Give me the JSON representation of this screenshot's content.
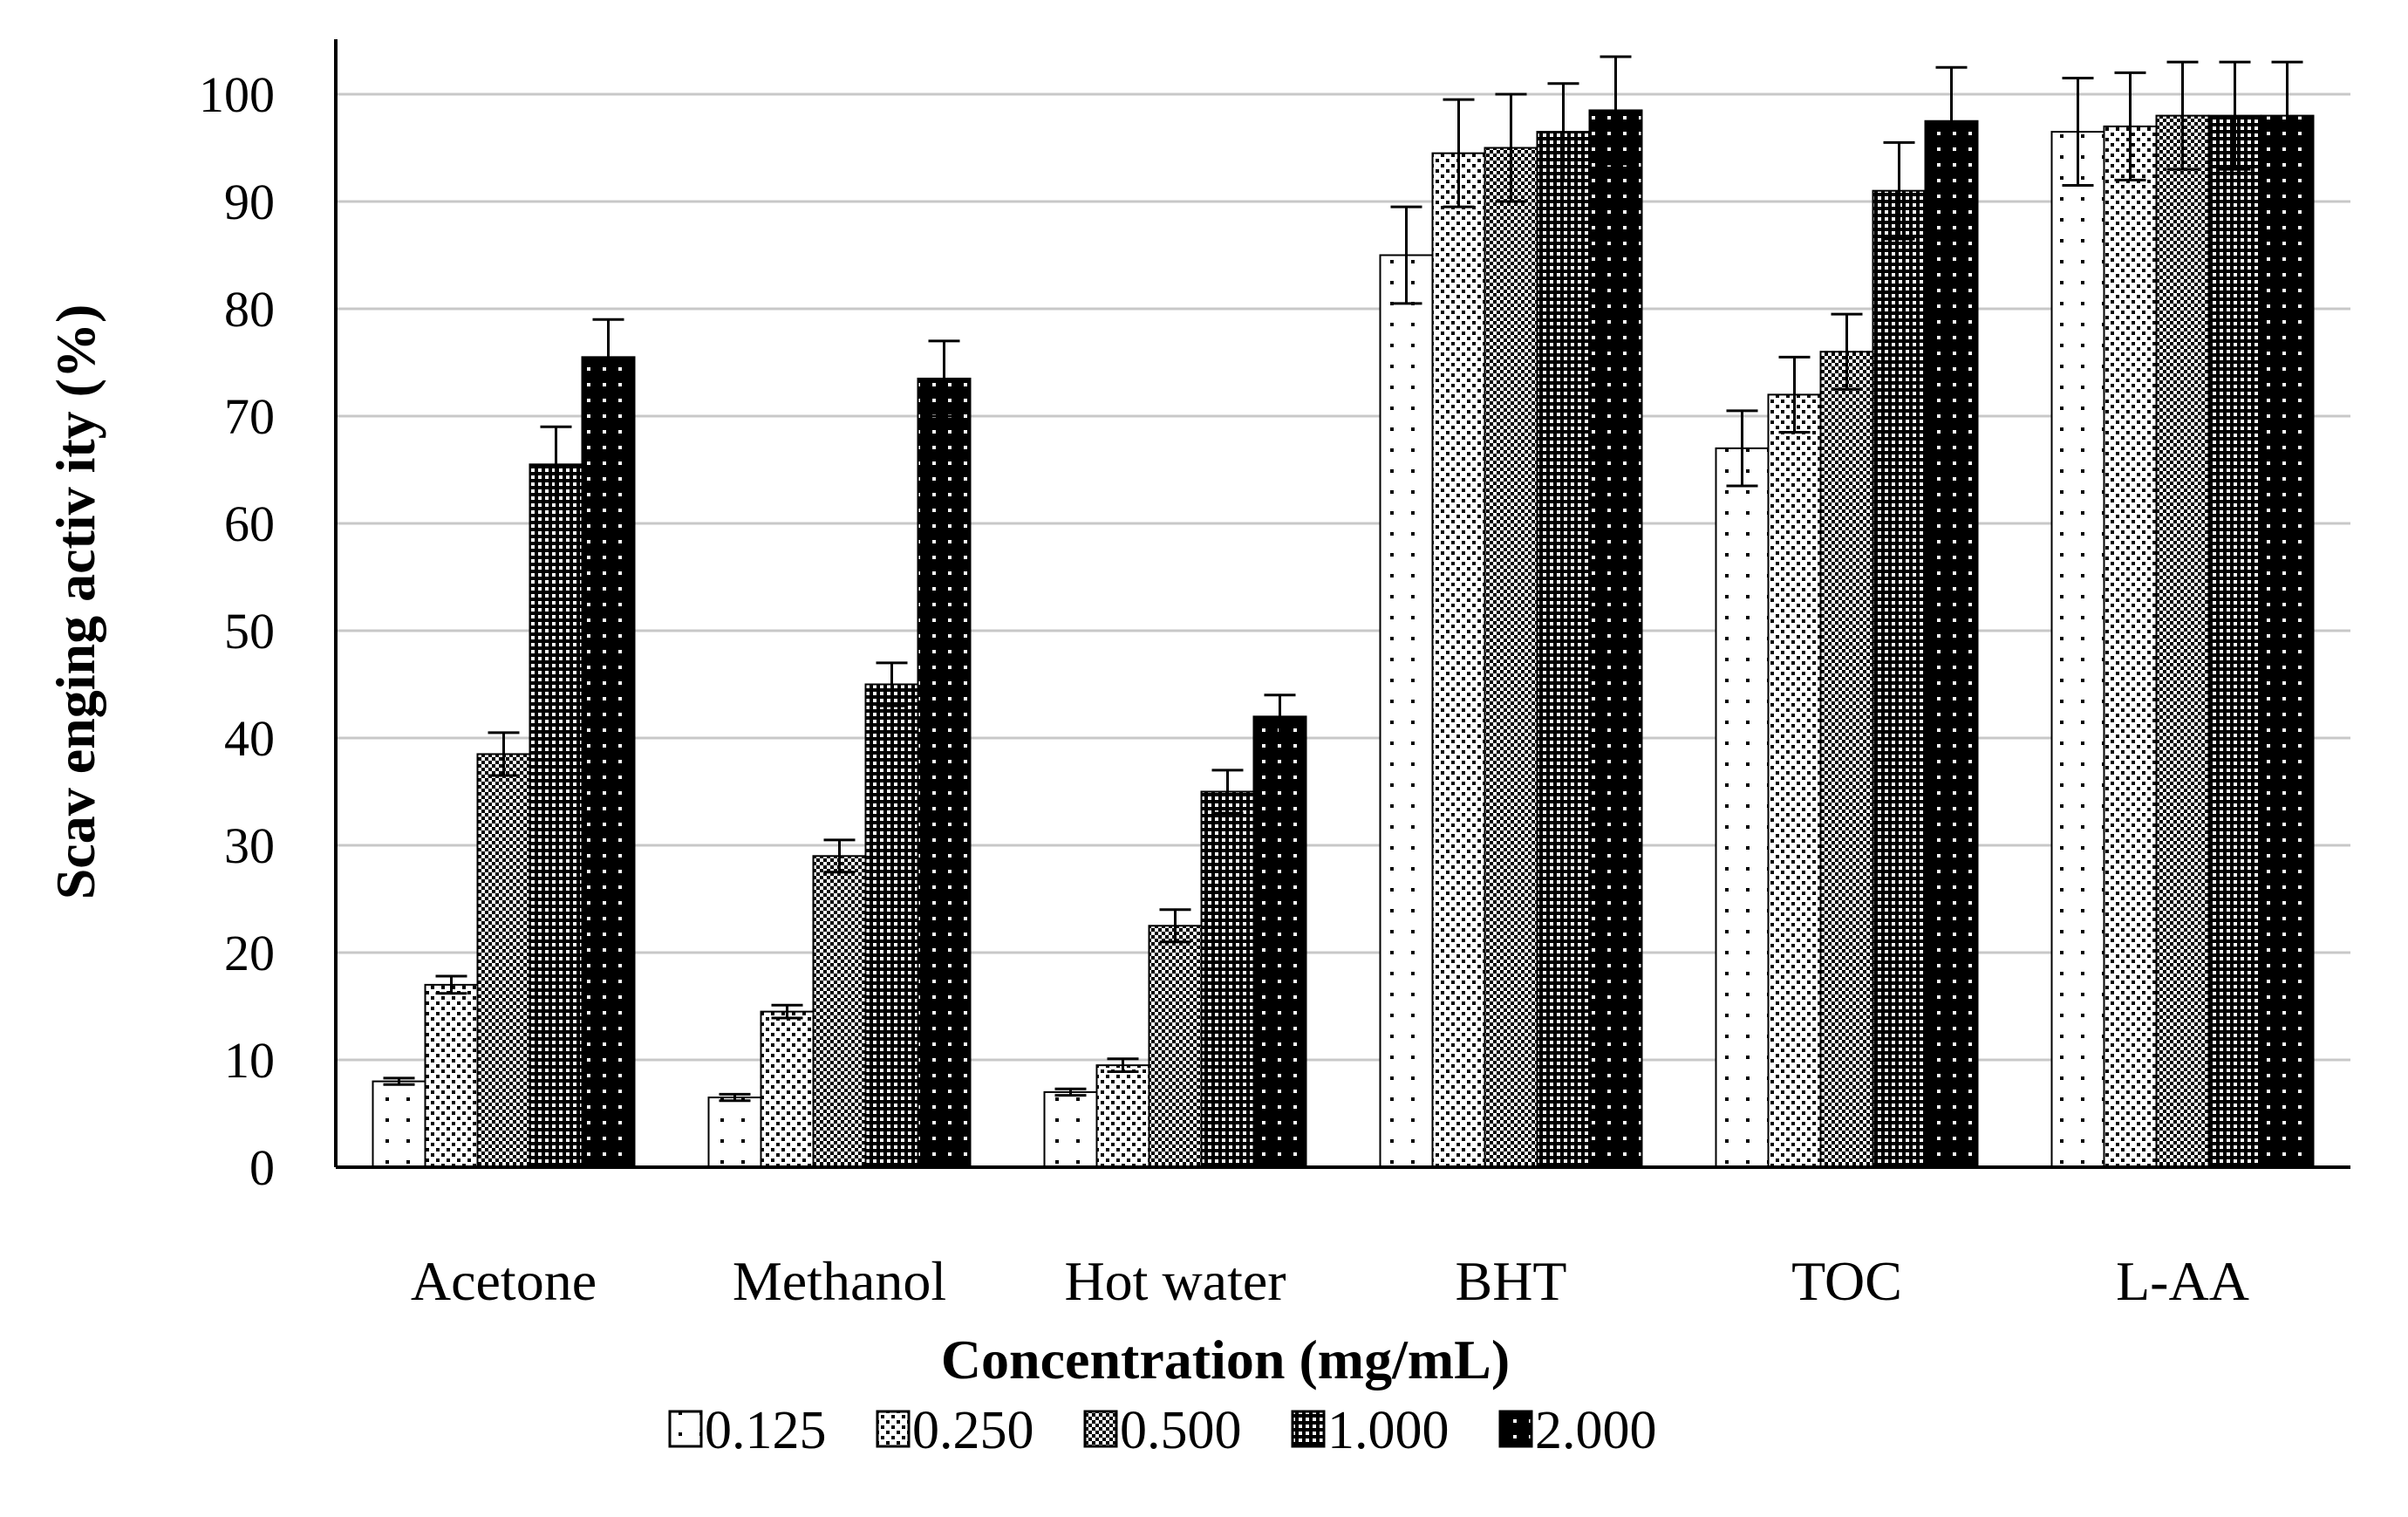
{
  "chart_data": {
    "type": "bar",
    "title": "",
    "xlabel": "Concentration (mg/mL)",
    "ylabel": "Scav enging activ ity (%)",
    "ylim": [
      0,
      100
    ],
    "yticks": [
      0,
      10,
      20,
      30,
      40,
      50,
      60,
      70,
      80,
      90,
      100
    ],
    "grid": true,
    "legend_position": "bottom",
    "categories": [
      "Acetone",
      "Methanol",
      "Hot water",
      "BHT",
      "TOC",
      "L-AA"
    ],
    "series": [
      {
        "name": "0.125",
        "pattern": "sparse-dots",
        "values": [
          8,
          6.5,
          7,
          85,
          67,
          96.5
        ],
        "errors": [
          0.3,
          0.3,
          0.3,
          4.5,
          3.5,
          5
        ]
      },
      {
        "name": "0.250",
        "pattern": "dots",
        "values": [
          17,
          14.5,
          9.5,
          94.5,
          72,
          97
        ],
        "errors": [
          0.8,
          0.6,
          0.6,
          5,
          3.5,
          5
        ]
      },
      {
        "name": "0.500",
        "pattern": "checker",
        "values": [
          38.5,
          29,
          22.5,
          95,
          76,
          98
        ],
        "errors": [
          2,
          1.5,
          1.5,
          5,
          3.5,
          5
        ]
      },
      {
        "name": "1.000",
        "pattern": "dense-grid",
        "values": [
          65.5,
          45,
          35,
          96.5,
          91,
          98
        ],
        "errors": [
          3.5,
          2,
          2,
          4.5,
          4.5,
          5
        ]
      },
      {
        "name": "2.000",
        "pattern": "black-dots",
        "values": [
          75.5,
          73.5,
          42,
          98.5,
          97.5,
          98
        ],
        "errors": [
          3.5,
          3.5,
          2,
          5,
          5,
          5
        ]
      }
    ]
  }
}
